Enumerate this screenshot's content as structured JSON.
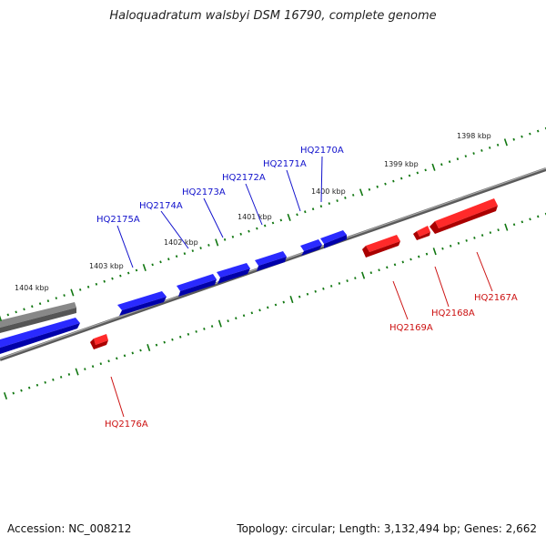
{
  "title": "Haloquadratum walsbyi DSM 16790, complete genome",
  "footer": {
    "accession": "Accession: NC_008212",
    "summary": "Topology: circular; Length: 3,132,494 bp; Genes: 2,662"
  },
  "colors": {
    "forward_gene": "#0000ee",
    "reverse_gene": "#ee0000",
    "backbone": "#777777",
    "tick": "#117711"
  },
  "scale_labels": [
    "1398 kbp",
    "1399 kbp",
    "1400 kbp",
    "1401 kbp",
    "1402 kbp",
    "1403 kbp",
    "1404 kbp"
  ],
  "genes_forward": [
    "HQ2170A",
    "HQ2171A",
    "HQ2172A",
    "HQ2173A",
    "HQ2174A",
    "HQ2175A"
  ],
  "genes_reverse": [
    "HQ2167A",
    "HQ2168A",
    "HQ2169A",
    "HQ2176A"
  ]
}
